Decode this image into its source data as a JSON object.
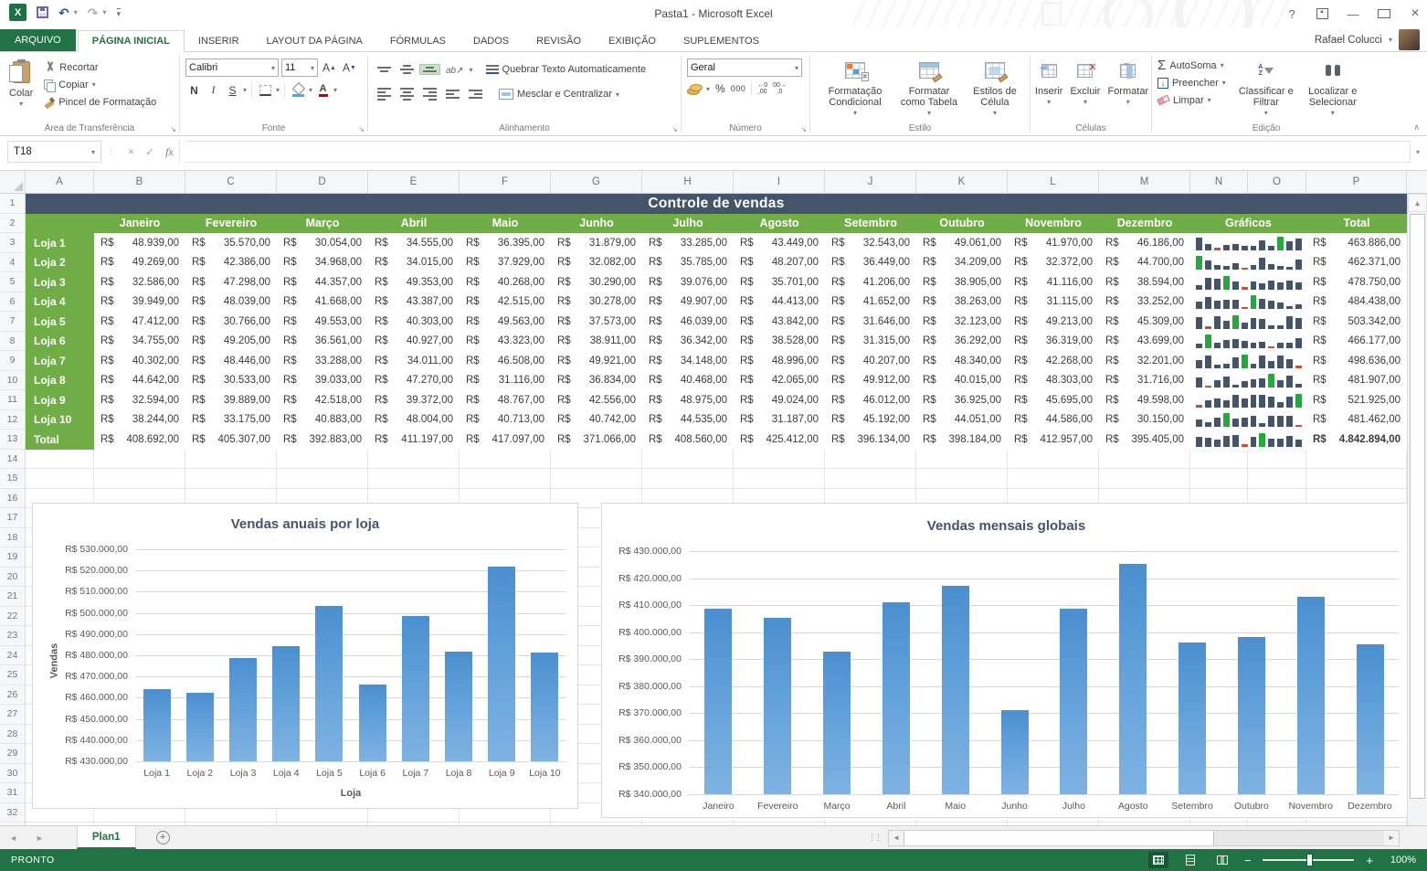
{
  "colors": {
    "chrome_green": "#217346",
    "header_green": "#70ad47",
    "band_slate": "#44546a",
    "bar_blue": "#5b9bd5",
    "spark_bar": "#44546a",
    "spark_max": "#27a83c",
    "spark_min": "#c8502e"
  },
  "titlebar": {
    "title": "Pasta1 - Microsoft Excel",
    "help": "?"
  },
  "account": {
    "name": "Rafael Colucci"
  },
  "ribbon_tabs": {
    "active": "PÁGINA INICIAL",
    "items": [
      "ARQUIVO",
      "PÁGINA INICIAL",
      "INSERIR",
      "LAYOUT DA PÁGINA",
      "FÓRMULAS",
      "DADOS",
      "REVISÃO",
      "EXIBIÇÃO",
      "SUPLEMENTOS"
    ]
  },
  "ribbon": {
    "clipboard": {
      "paste": "Colar",
      "cut": "Recortar",
      "copy": "Copiar",
      "painter": "Pincel de Formatação",
      "group": "Área de Transferência"
    },
    "font": {
      "family": "Calibri",
      "size": "11",
      "bold": "N",
      "italic": "I",
      "underline": "S",
      "group": "Fonte"
    },
    "alignment": {
      "wrap": "Quebrar Texto Automaticamente",
      "merge": "Mesclar e Centralizar",
      "group": "Alinhamento"
    },
    "number": {
      "format": "Geral",
      "percent": "%",
      "thousands": "000",
      "group": "Número"
    },
    "style": {
      "conditional": "Formatação Condicional",
      "table": "Formatar como Tabela",
      "cell": "Estilos de Célula",
      "group": "Estilo"
    },
    "cells": {
      "insert": "Inserir",
      "delete": "Excluir",
      "format": "Formatar",
      "group": "Células"
    },
    "editing": {
      "autosum": "AutoSoma",
      "fill": "Preencher",
      "clear": "Limpar",
      "sort": "Classificar e Filtrar",
      "find": "Localizar e Selecionar",
      "group": "Edição"
    }
  },
  "formula_bar": {
    "cell_ref": "T18",
    "formula": ""
  },
  "grid": {
    "columns": [
      "A",
      "B",
      "C",
      "D",
      "E",
      "F",
      "G",
      "H",
      "I",
      "J",
      "K",
      "L",
      "M",
      "N",
      "O",
      "P"
    ],
    "visible_rows": 33
  },
  "table": {
    "title": "Controle de vendas",
    "currency": "R$",
    "months": [
      "Janeiro",
      "Fevereiro",
      "Março",
      "Abril",
      "Maio",
      "Junho",
      "Julho",
      "Agosto",
      "Setembro",
      "Outubro",
      "Novembro",
      "Dezembro"
    ],
    "sparkline_header": "Gráficos",
    "total_header": "Total",
    "totals_label": "Total",
    "stores": [
      {
        "name": "Loja 1",
        "values": [
          48939,
          35570,
          30054,
          34555,
          36395,
          31879,
          33285,
          43449,
          32543,
          49061,
          41970,
          46186
        ],
        "total": 463886
      },
      {
        "name": "Loja 2",
        "values": [
          49269,
          42386,
          34968,
          34015,
          37929,
          32082,
          35785,
          48207,
          36449,
          34209,
          32372,
          44700
        ],
        "total": 462371
      },
      {
        "name": "Loja 3",
        "values": [
          32586,
          47298,
          44357,
          49353,
          40268,
          30290,
          39076,
          35701,
          41206,
          38905,
          41116,
          38594
        ],
        "total": 478750
      },
      {
        "name": "Loja 4",
        "values": [
          39949,
          48039,
          41668,
          43387,
          42515,
          30278,
          49907,
          44413,
          41652,
          38263,
          31115,
          33252
        ],
        "total": 484438
      },
      {
        "name": "Loja 5",
        "values": [
          47412,
          30766,
          49553,
          40303,
          49563,
          37573,
          46039,
          43842,
          31646,
          32123,
          49213,
          45309
        ],
        "total": 503342
      },
      {
        "name": "Loja 6",
        "values": [
          34755,
          49205,
          36561,
          40927,
          43323,
          38911,
          36342,
          38528,
          31315,
          36292,
          36319,
          43699
        ],
        "total": 466177
      },
      {
        "name": "Loja 7",
        "values": [
          40302,
          48446,
          33288,
          34011,
          46508,
          49921,
          34148,
          48996,
          40207,
          48340,
          42268,
          32201
        ],
        "total": 498636
      },
      {
        "name": "Loja 8",
        "values": [
          44642,
          30533,
          39033,
          47270,
          31116,
          36834,
          40468,
          42065,
          49912,
          40015,
          48303,
          31716
        ],
        "total": 481907
      },
      {
        "name": "Loja 9",
        "values": [
          32594,
          39889,
          42518,
          39372,
          48767,
          42556,
          48975,
          49024,
          46012,
          36925,
          45695,
          49598
        ],
        "total": 521925
      },
      {
        "name": "Loja 10",
        "values": [
          38244,
          33175,
          40883,
          48004,
          40713,
          40742,
          44535,
          31187,
          45192,
          44051,
          44586,
          30150
        ],
        "total": 481462
      }
    ],
    "monthly_totals": [
      408692,
      405307,
      392883,
      411197,
      417097,
      371066,
      408560,
      425412,
      396134,
      398184,
      412957,
      395405
    ],
    "grand_total": 4842894
  },
  "chart_data": [
    {
      "type": "bar",
      "title": "Vendas anuais por loja",
      "xlabel": "Loja",
      "ylabel": "Vendas",
      "categories": [
        "Loja 1",
        "Loja 2",
        "Loja 3",
        "Loja 4",
        "Loja 5",
        "Loja 6",
        "Loja 7",
        "Loja 8",
        "Loja 9",
        "Loja 10"
      ],
      "values": [
        463886,
        462371,
        478750,
        484438,
        503342,
        466177,
        498636,
        481907,
        521925,
        481462
      ],
      "ylim": [
        430000,
        530000
      ],
      "ytick_step": 10000,
      "tick_prefix": "R$ ",
      "grid": true,
      "legend": "none"
    },
    {
      "type": "bar",
      "title": "Vendas mensais globais",
      "xlabel": "",
      "ylabel": "",
      "categories": [
        "Janeiro",
        "Fevereiro",
        "Março",
        "Abril",
        "Maio",
        "Junho",
        "Julho",
        "Agosto",
        "Setembro",
        "Outubro",
        "Novembro",
        "Dezembro"
      ],
      "values": [
        408692,
        405307,
        392883,
        411197,
        417097,
        371066,
        408560,
        425412,
        396134,
        398184,
        412957,
        395405
      ],
      "ylim": [
        340000,
        430000
      ],
      "ytick_step": 10000,
      "tick_prefix": "R$ ",
      "grid": true,
      "legend": "none"
    }
  ],
  "sheet_tabs": {
    "name": "Plan1"
  },
  "status_bar": {
    "status": "PRONTO",
    "zoom_level": "100%"
  }
}
